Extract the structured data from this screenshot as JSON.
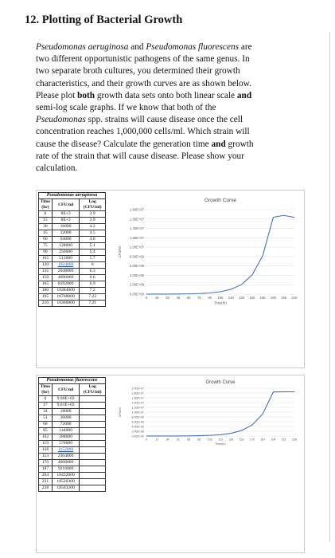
{
  "question": {
    "title": "12. Plotting of Bacterial Growth",
    "lines": [
      [
        "Pseudomonas aeruginosa",
        " and ",
        "Pseudomonas fluorescens",
        " are"
      ],
      [
        "two different opportunistic pathogens of the same genus. In"
      ],
      [
        "two separate broth cultures, you determined their growth"
      ],
      [
        "characteristics, and their growth curves are as shown below."
      ],
      [
        "Please plot ",
        "both",
        " growth data sets onto both linear scale ",
        "and"
      ],
      [
        "semi-log scale graphs. If we know that both of the"
      ],
      [
        "Pseudomonas",
        " spp. strains will cause disease once the cell"
      ],
      [
        "concentration reaches 1,000,000 cells/ml. Which strain will"
      ],
      [
        "cause the disease? Calculate the generation time ",
        "and",
        " growth"
      ],
      [
        "rate of the strain that will cause disease. Please show your"
      ],
      [
        "calculation."
      ]
    ]
  },
  "table1": {
    "heading": "Pseudomonas aeruginosa",
    "col_time": "Time (hr)",
    "col_cfu": "CFU/ml",
    "col_log": "Log (CFU/ml)",
    "rows": [
      [
        "0",
        "8E+3",
        "3.9"
      ],
      [
        "15",
        "8E+3",
        "3.9"
      ],
      [
        "30",
        "16000",
        "4.2"
      ],
      [
        "45",
        "32000",
        "4.5"
      ],
      [
        "60",
        "64000",
        "4.8"
      ],
      [
        "75",
        "128000",
        "5.1"
      ],
      [
        "90",
        "256000",
        "5.4"
      ],
      [
        "105",
        "512000",
        "5.7"
      ],
      [
        "120",
        "1024000",
        "6"
      ],
      [
        "135",
        "2048000",
        "6.3"
      ],
      [
        "150",
        "4096000",
        "6.6"
      ],
      [
        "165",
        "8192000",
        "6.9"
      ],
      [
        "180",
        "16384000",
        "7.2"
      ],
      [
        "195",
        "16768000",
        "7.22"
      ],
      [
        "210",
        "16360000",
        "7.21"
      ]
    ]
  },
  "table2": {
    "heading": "Pseudomonas fluorescens",
    "col_time": "Time (hr)",
    "col_cfu": "CFU/ml",
    "col_log": "Log (CFU/ml)",
    "rows": [
      [
        "0",
        "9.00E+03",
        ""
      ],
      [
        "17",
        "9.01E+03",
        ""
      ],
      [
        "34",
        "18000",
        ""
      ],
      [
        "51",
        "36000",
        ""
      ],
      [
        "68",
        "72000",
        ""
      ],
      [
        "85",
        "144000",
        ""
      ],
      [
        "102",
        "288000",
        ""
      ],
      [
        "119",
        "576000",
        ""
      ],
      [
        "136",
        "1152000",
        ""
      ],
      [
        "153",
        "2304000",
        ""
      ],
      [
        "170",
        "4608000",
        ""
      ],
      [
        "187",
        "9216000",
        ""
      ],
      [
        "204",
        "18432000",
        ""
      ],
      [
        "221",
        "18520300",
        ""
      ],
      [
        "238",
        "18503200",
        ""
      ]
    ]
  },
  "chart_data": [
    {
      "type": "line",
      "title": "Growth Curve",
      "xlabel": "Time(hr)",
      "ylabel": "CFU/ml",
      "x": [
        0,
        15,
        30,
        45,
        60,
        75,
        90,
        105,
        120,
        135,
        150,
        165,
        180,
        195,
        210
      ],
      "series": [
        {
          "values": [
            8000,
            8000,
            16000,
            32000,
            64000,
            128000,
            256000,
            512000,
            1024000,
            2048000,
            4096000,
            8192000,
            16384000,
            16768000,
            16360000
          ]
        }
      ],
      "ylim": [
        0,
        18000000
      ],
      "y_ticks": [
        "0.00E+00",
        "2.00E+06",
        "4.00E+06",
        "6.00E+06",
        "8.00E+06",
        "1.00E+07",
        "1.20E+07",
        "1.40E+07",
        "1.60E+07",
        "1.80E+07"
      ],
      "color": "#4472c4",
      "grid": true
    },
    {
      "type": "line",
      "title": "Growth Curve",
      "xlabel": "Time(hr)",
      "ylabel": "CFU/ml",
      "x": [
        0,
        17,
        34,
        51,
        68,
        85,
        102,
        119,
        136,
        153,
        170,
        187,
        204,
        221,
        238
      ],
      "series": [
        {
          "values": [
            9000,
            9010,
            18000,
            36000,
            72000,
            144000,
            288000,
            576000,
            1152000,
            2304000,
            4608000,
            9216000,
            18432000,
            18520300,
            18503200
          ]
        }
      ],
      "ylim": [
        0,
        20000000
      ],
      "y_ticks": [
        "0.00E+00",
        "2.00E+06",
        "4.00E+06",
        "6.00E+06",
        "8.00E+06",
        "1.00E+07",
        "1.20E+07",
        "1.40E+07",
        "1.60E+07",
        "1.80E+07",
        "2.00E+07"
      ],
      "color": "#4472c4",
      "grid": true
    }
  ]
}
